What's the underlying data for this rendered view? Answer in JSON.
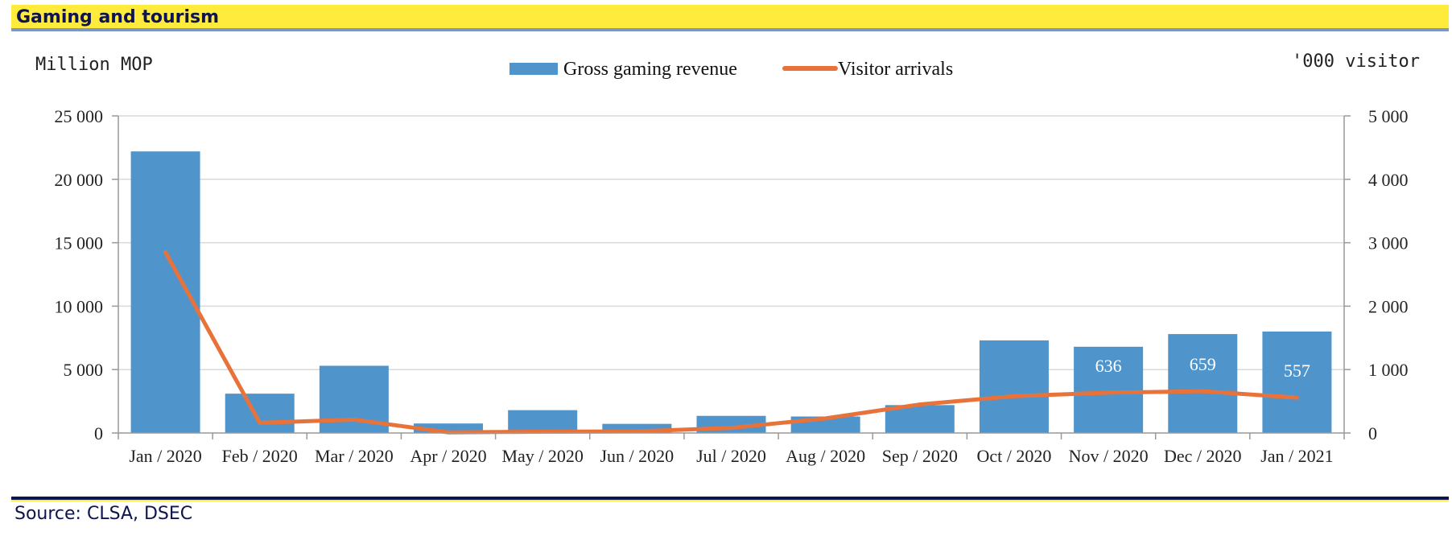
{
  "header": {
    "title": "Gaming and tourism"
  },
  "footer": {
    "source": "Source: CLSA, DSEC"
  },
  "colors": {
    "bar": "#5094cc",
    "line": "#e8733a",
    "grid": "#d9d9d9",
    "header_bg": "#ffeb3b",
    "header_text": "#0d1450"
  },
  "chart_data": {
    "type": "bar",
    "categories": [
      "Jan / 2020",
      "Feb / 2020",
      "Mar / 2020",
      "Apr / 2020",
      "May / 2020",
      "Jun / 2020",
      "Jul / 2020",
      "Aug / 2020",
      "Sep / 2020",
      "Oct / 2020",
      "Nov / 2020",
      "Dec / 2020",
      "Jan / 2021"
    ],
    "series": [
      {
        "name": "Gross gaming revenue",
        "type": "bar",
        "axis": "left",
        "values": [
          22200,
          3100,
          5300,
          750,
          1800,
          720,
          1350,
          1300,
          2200,
          7300,
          6800,
          7800,
          8000
        ]
      },
      {
        "name": "Visitor arrivals",
        "type": "line",
        "axis": "right",
        "values": [
          2850,
          160,
          210,
          10,
          20,
          25,
          80,
          230,
          450,
          580,
          636,
          659,
          557
        ]
      }
    ],
    "data_labels": [
      {
        "index": 10,
        "text": "636"
      },
      {
        "index": 11,
        "text": "659"
      },
      {
        "index": 12,
        "text": "557"
      }
    ],
    "ylabel_left": "Million MOP",
    "ylabel_right": "'000 visitor",
    "ylim_left": [
      0,
      25000
    ],
    "ylim_right": [
      0,
      5000
    ],
    "yticks_left": [
      "0",
      "5 000",
      "10 000",
      "15 000",
      "20 000",
      "25 000"
    ],
    "yticks_right": [
      "0",
      "1 000",
      "2 000",
      "3 000",
      "4 000",
      "5 000"
    ],
    "grid": true,
    "legend_position": "top"
  }
}
